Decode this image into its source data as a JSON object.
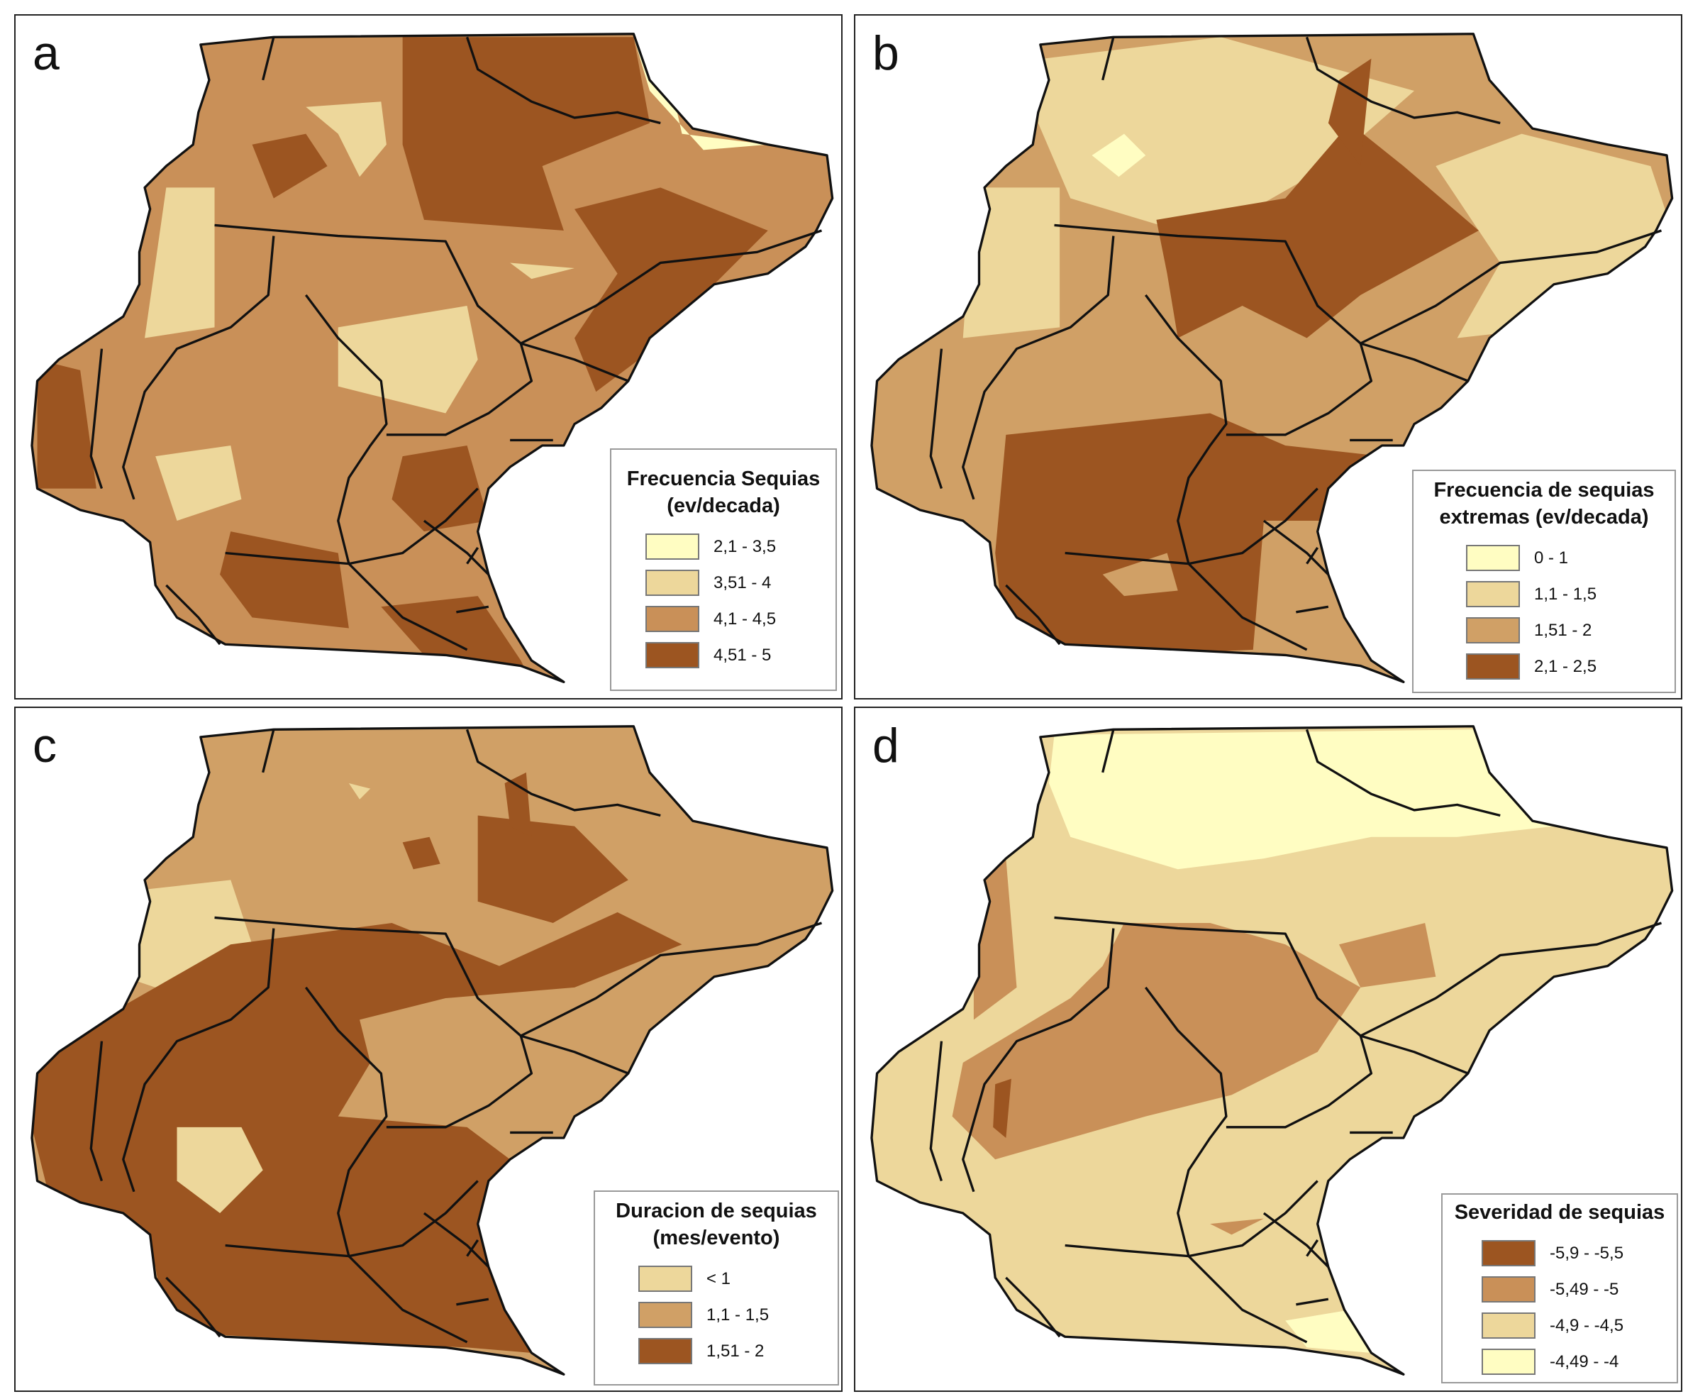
{
  "colors": {
    "c1": "#FFFDC2",
    "c2": "#EDD79B",
    "c3": "#C99058",
    "c3b": "#D0A066",
    "c4": "#9C5521",
    "line": "#111111"
  },
  "panels": [
    {
      "label": "a",
      "legend": {
        "title_lines": [
          "Frecuencia Sequias",
          "(ev/decada)"
        ],
        "items": [
          {
            "label": "2,1 - 3,5",
            "color": "#FFFDC2"
          },
          {
            "label": "3,51 - 4",
            "color": "#EDD79B"
          },
          {
            "label": "4,1 - 4,5",
            "color": "#C99058"
          },
          {
            "label": "4,51 - 5",
            "color": "#9C5521"
          }
        ]
      }
    },
    {
      "label": "b",
      "legend": {
        "title_lines": [
          "Frecuencia de sequias",
          "extremas (ev/decada)"
        ],
        "items": [
          {
            "label": "0 - 1",
            "color": "#FFFDC2"
          },
          {
            "label": "1,1 - 1,5",
            "color": "#EDD79B"
          },
          {
            "label": "1,51 - 2",
            "color": "#D0A066"
          },
          {
            "label": "2,1 - 2,5",
            "color": "#9C5521"
          }
        ]
      }
    },
    {
      "label": "c",
      "legend": {
        "title_lines": [
          "Duracion de sequias",
          "(mes/evento)"
        ],
        "items": [
          {
            "label": "< 1",
            "color": "#EDD79B"
          },
          {
            "label": "1,1 - 1,5",
            "color": "#D0A066"
          },
          {
            "label": "1,51 - 2",
            "color": "#9C5521"
          }
        ]
      }
    },
    {
      "label": "d",
      "legend": {
        "title_lines": [
          "Severidad de sequias"
        ],
        "items": [
          {
            "label": "-5,9 - -5,5",
            "color": "#9C5521"
          },
          {
            "label": "-5,49 - -5",
            "color": "#C99058"
          },
          {
            "label": "-4,9 - -4,5",
            "color": "#EDD79B"
          },
          {
            "label": "-4,49 - -4",
            "color": "#FFFDC2"
          }
        ]
      }
    }
  ]
}
